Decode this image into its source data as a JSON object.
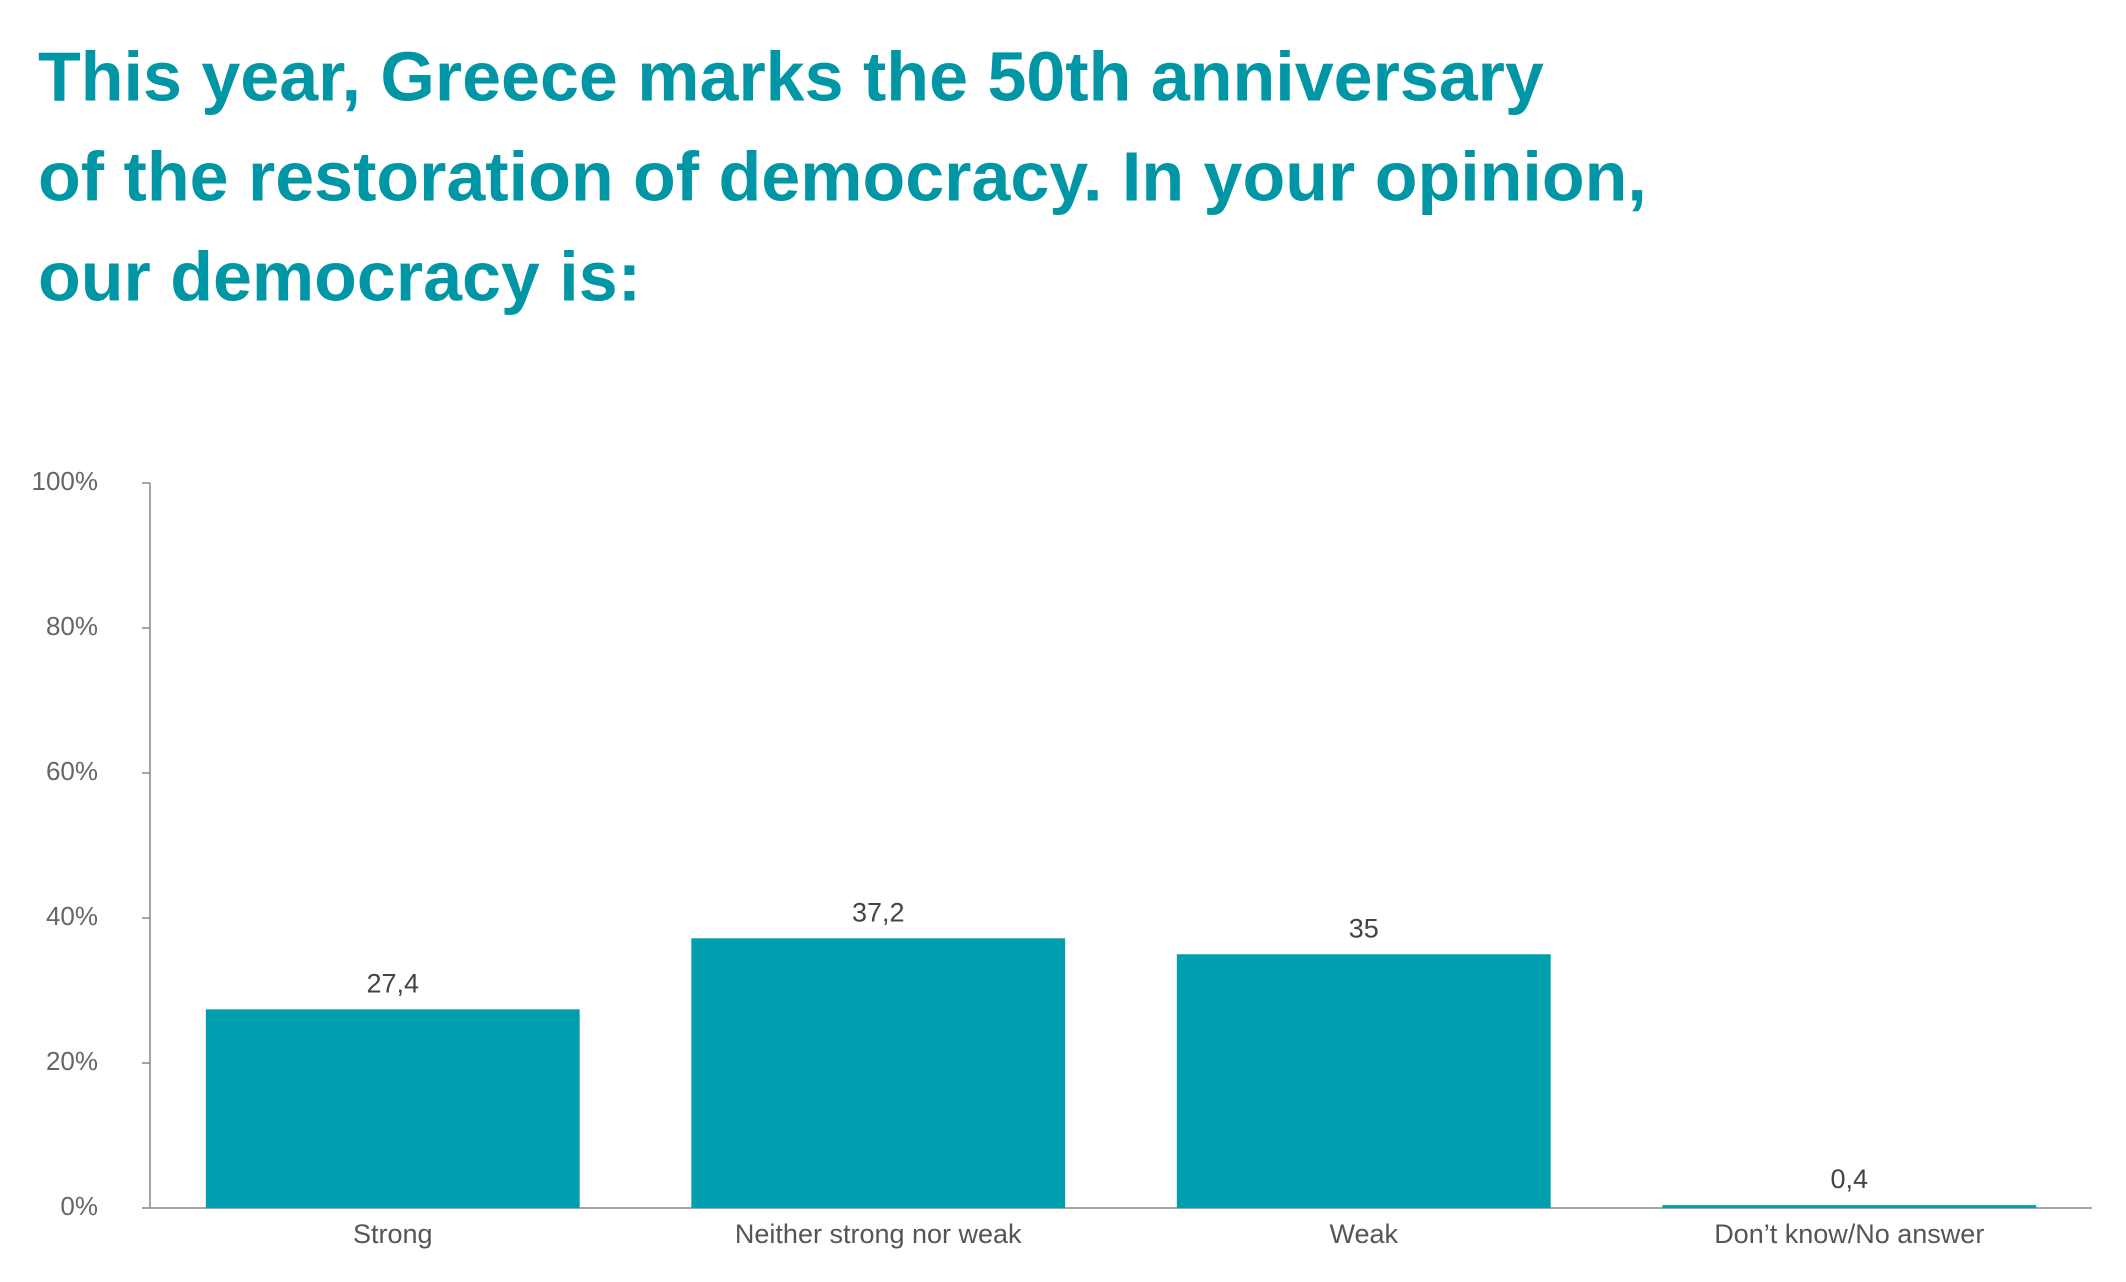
{
  "chart_data": {
    "type": "bar",
    "title": [
      "This year, Greece marks the 50th anniversary",
      "of the restoration of democracy. In your opinion,",
      "our democracy is:"
    ],
    "categories": [
      "Strong",
      "Neither strong nor weak",
      "Weak",
      "Don’t know/No answer"
    ],
    "values": [
      27.4,
      37.2,
      35,
      0.4
    ],
    "value_labels": [
      "27,4",
      "37,2",
      "35",
      "0,4"
    ],
    "color": "#009eae",
    "ylim": [
      0,
      100
    ],
    "yticks": [
      {
        "value": 0,
        "label": "0%"
      },
      {
        "value": 20,
        "label": "20%"
      },
      {
        "value": 40,
        "label": "40%"
      },
      {
        "value": 60,
        "label": "60%"
      },
      {
        "value": 80,
        "label": "80%"
      },
      {
        "value": 100,
        "label": "100%"
      }
    ],
    "grid": false
  }
}
